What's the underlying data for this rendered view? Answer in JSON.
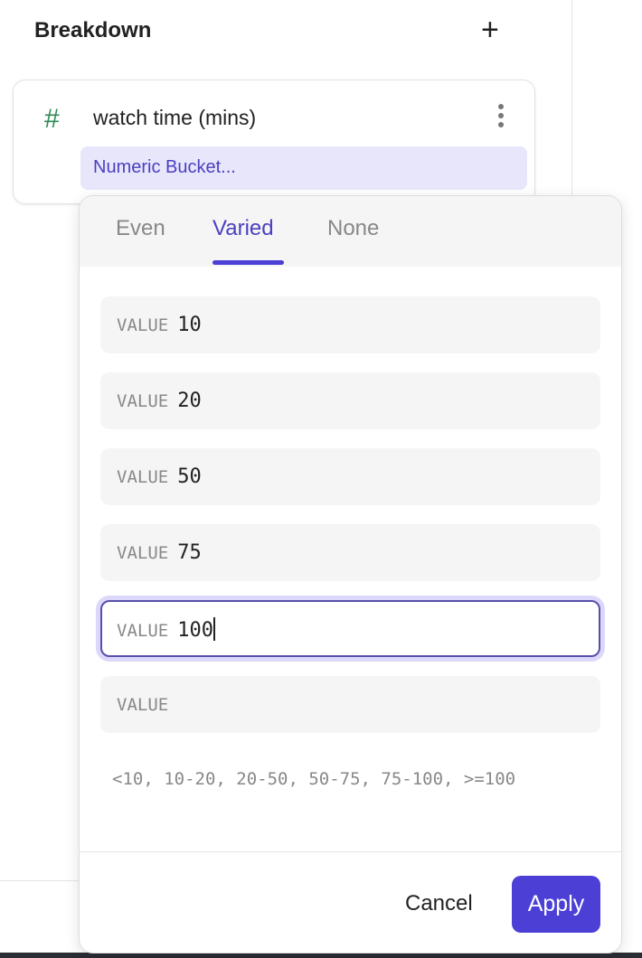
{
  "header": {
    "title": "Breakdown",
    "add_icon": "plus-icon"
  },
  "card": {
    "type_icon": "hash-icon",
    "title": "watch time (mins)",
    "menu_icon": "kebab-icon",
    "chip": "Numeric Bucket..."
  },
  "popover": {
    "tabs": [
      {
        "label": "Even"
      },
      {
        "label": "Varied",
        "active": true
      },
      {
        "label": "None"
      }
    ],
    "fields": [
      {
        "label": "VALUE",
        "value": "10"
      },
      {
        "label": "VALUE",
        "value": "20"
      },
      {
        "label": "VALUE",
        "value": "50"
      },
      {
        "label": "VALUE",
        "value": "75"
      },
      {
        "label": "VALUE",
        "value": "100",
        "focused": true
      },
      {
        "label": "VALUE",
        "value": ""
      }
    ],
    "summary": "<10, 10-20, 20-50, 50-75, 75-100, >=100",
    "cancel": "Cancel",
    "apply": "Apply"
  },
  "colors": {
    "accent": "#4b3fd6",
    "chip_bg": "#e8e6fb",
    "hash": "#2e8b57"
  }
}
